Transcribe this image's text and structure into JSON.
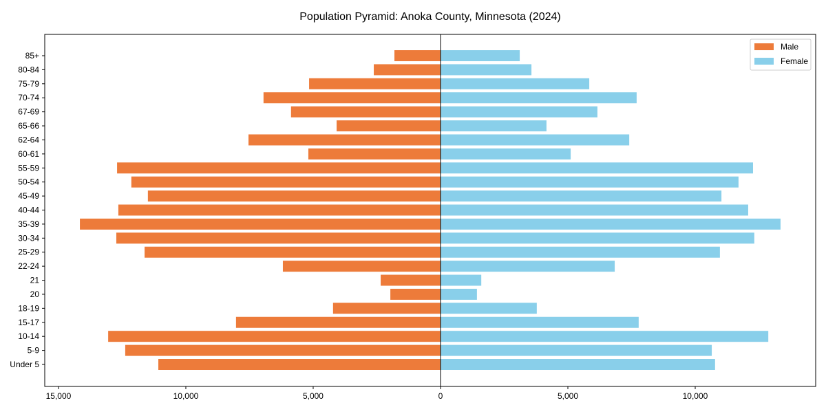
{
  "chart_data": {
    "type": "bar",
    "orientation": "horizontal-pyramid",
    "title": "Population Pyramid: Anoka County, Minnesota (2024)",
    "xlabel": "",
    "ylabel": "",
    "xlim": [
      -15540,
      14730
    ],
    "xticks": [
      -15000,
      -10000,
      -5000,
      0,
      5000,
      10000
    ],
    "xtick_labels": [
      "15,000",
      "10,000",
      "5,000",
      "0",
      "5,000",
      "10,000"
    ],
    "legend_position": "top-right",
    "categories": [
      "85+",
      "80-84",
      "75-79",
      "70-74",
      "67-69",
      "65-66",
      "62-64",
      "60-61",
      "55-59",
      "50-54",
      "45-49",
      "40-44",
      "35-39",
      "30-34",
      "25-29",
      "22-24",
      "21",
      "20",
      "18-19",
      "15-17",
      "10-14",
      "5-9",
      "Under 5"
    ],
    "series": [
      {
        "name": "Male",
        "color": "#ED7B3A",
        "values": [
          1810,
          2620,
          5160,
          6950,
          5870,
          4080,
          7540,
          5190,
          12700,
          12140,
          11490,
          12650,
          14160,
          12730,
          11620,
          6190,
          2350,
          1970,
          4220,
          8030,
          13050,
          12380,
          11080
        ]
      },
      {
        "name": "Female",
        "color": "#89CFEA",
        "values": [
          3110,
          3570,
          5840,
          7700,
          6160,
          4160,
          7410,
          5110,
          12270,
          11700,
          11030,
          12080,
          13350,
          12320,
          10970,
          6840,
          1600,
          1430,
          3780,
          7780,
          12870,
          10650,
          10780
        ]
      }
    ]
  }
}
